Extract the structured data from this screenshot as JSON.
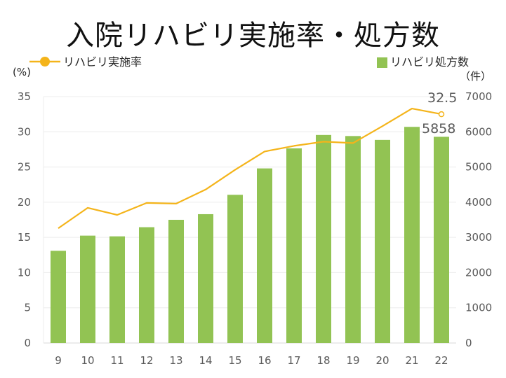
{
  "title": "入院リハビリ実施率・処方数",
  "chart_data": {
    "type": "bar+line",
    "categories": [
      "9",
      "10",
      "11",
      "12",
      "13",
      "14",
      "15",
      "16",
      "17",
      "18",
      "19",
      "20",
      "21",
      "22"
    ],
    "series": [
      {
        "name": "リハビリ処方数",
        "type": "bar",
        "axis": "right",
        "color": "#92c353",
        "values": [
          2620,
          3050,
          3030,
          3290,
          3500,
          3660,
          4210,
          4960,
          5530,
          5910,
          5880,
          5770,
          6140,
          5858
        ]
      },
      {
        "name": "リハビリ実施率",
        "type": "line",
        "axis": "left",
        "color": "#f4b41a",
        "values": [
          16.3,
          19.2,
          18.2,
          19.9,
          19.8,
          21.8,
          24.6,
          27.2,
          28.0,
          28.6,
          28.4,
          30.8,
          33.3,
          32.5
        ]
      }
    ],
    "left_axis": {
      "unit": "(%)",
      "min": 0,
      "max": 35,
      "ticks": [
        0,
        5,
        10,
        15,
        20,
        25,
        30,
        35
      ]
    },
    "right_axis": {
      "unit": "（件）",
      "min": 0,
      "max": 7000,
      "ticks": [
        0,
        1000,
        2000,
        3000,
        4000,
        5000,
        6000,
        7000
      ]
    },
    "data_labels": {
      "line_last": "32.5",
      "bar_last": "5858"
    },
    "grid": true,
    "legend": {
      "line_position": "top-left",
      "bar_position": "top-right"
    }
  }
}
